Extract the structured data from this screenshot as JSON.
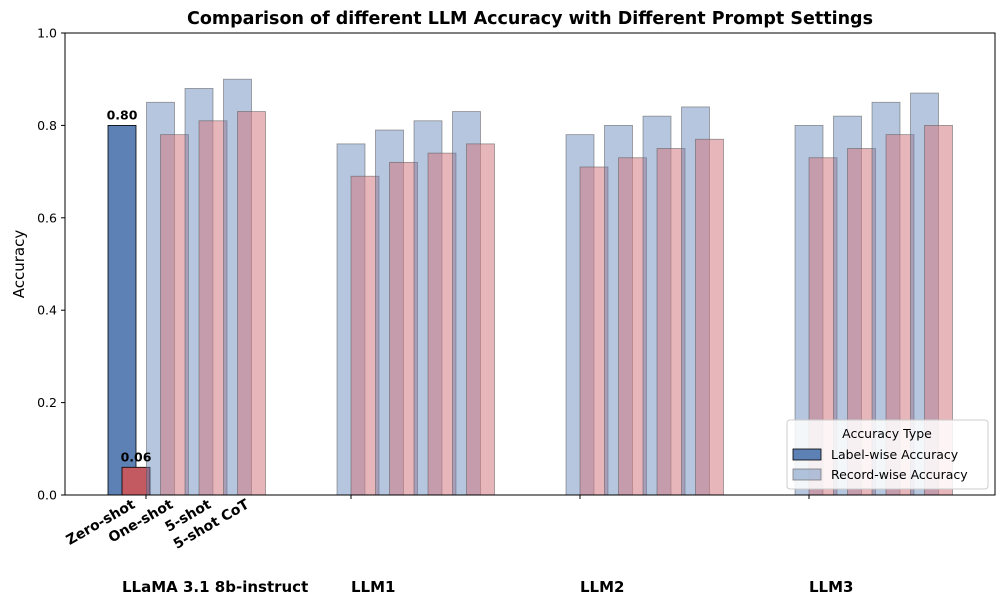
{
  "chart_data": {
    "type": "bar",
    "title": "Comparison of different LLM Accuracy with Different Prompt Settings",
    "ylabel": "Accuracy",
    "ylim": [
      0,
      1
    ],
    "yticks": [
      "0.0",
      "0.2",
      "0.4",
      "0.6",
      "0.8",
      "1.0"
    ],
    "groups": [
      "LLaMA 3.1 8b-instruct",
      "LLM1",
      "LLM2",
      "LLM3"
    ],
    "prompt_settings": [
      "Zero-shot",
      "One-shot",
      "5-shot",
      "5-shot CoT"
    ],
    "series": [
      {
        "name": "Label-wise Accuracy",
        "record_wise": [
          0.8,
          0.85,
          0.88,
          0.9
        ],
        "label_wise": [
          0.06,
          0.78,
          0.81,
          0.83
        ]
      },
      {
        "name": "",
        "record_wise": [
          0.76,
          0.79,
          0.81,
          0.83
        ],
        "label_wise": [
          0.69,
          0.72,
          0.74,
          0.76
        ]
      },
      {
        "name": "",
        "record_wise": [
          0.78,
          0.8,
          0.82,
          0.84
        ],
        "label_wise": [
          0.71,
          0.73,
          0.75,
          0.77
        ]
      },
      {
        "name": "",
        "record_wise": [
          0.8,
          0.82,
          0.85,
          0.87
        ],
        "label_wise": [
          0.73,
          0.75,
          0.78,
          0.8
        ]
      }
    ],
    "data_labels": [
      {
        "group": 0,
        "setting": 0,
        "series": "record_wise",
        "text": "0.80"
      },
      {
        "group": 0,
        "setting": 0,
        "series": "label_wise",
        "text": "0.06"
      }
    ],
    "legend": {
      "title": "Accuracy Type",
      "placement": "lower-right",
      "entries": [
        "Label-wise Accuracy",
        "Record-wise Accuracy"
      ]
    },
    "colors": {
      "record_highlight": "#5e81b5",
      "label_highlight": "#c35a62",
      "record": "#b3c3dd",
      "label": "#e6b6b9",
      "overlap": "#b996a6"
    },
    "grid": false
  }
}
